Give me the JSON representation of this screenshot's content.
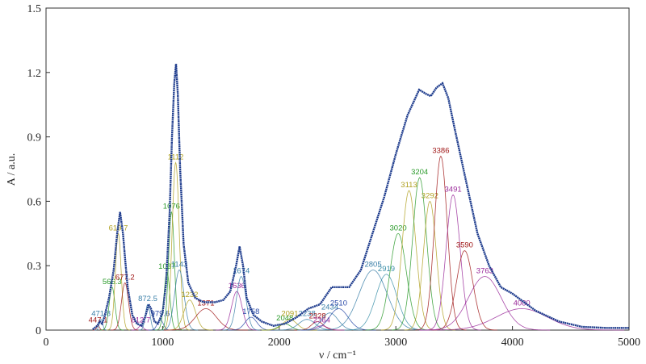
{
  "chart_data": {
    "type": "line",
    "x_label": "ν / cm⁻¹",
    "y_label": "A / a.u.",
    "xlim": [
      0,
      5000
    ],
    "ylim": [
      0,
      1.5
    ],
    "xticks": [
      0,
      1000,
      2000,
      3000,
      4000,
      5000
    ],
    "yticks": [
      0,
      0.3,
      0.6,
      0.9,
      1.2,
      1.5
    ],
    "color": "#1c3a8c",
    "x": [
      400,
      440,
      460,
      480,
      500,
      540,
      580,
      610,
      635,
      660,
      680,
      700,
      740,
      780,
      820,
      850,
      880,
      900,
      930,
      960,
      1000,
      1030,
      1060,
      1080,
      1100,
      1115,
      1130,
      1150,
      1180,
      1220,
      1280,
      1350,
      1450,
      1520,
      1580,
      1630,
      1660,
      1690,
      1720,
      1780,
      1850,
      1950,
      2050,
      2150,
      2250,
      2350,
      2450,
      2520,
      2600,
      2700,
      2800,
      2900,
      3000,
      3100,
      3200,
      3260,
      3300,
      3350,
      3400,
      3450,
      3500,
      3600,
      3700,
      3800,
      3900,
      4000,
      4100,
      4200,
      4400,
      4600,
      4800,
      5000
    ],
    "values": [
      0.003,
      0.02,
      0.04,
      0.03,
      0.06,
      0.15,
      0.28,
      0.45,
      0.55,
      0.45,
      0.32,
      0.2,
      0.07,
      0.03,
      0.02,
      0.06,
      0.12,
      0.1,
      0.04,
      0.03,
      0.08,
      0.22,
      0.55,
      0.9,
      1.15,
      1.24,
      1.1,
      0.75,
      0.4,
      0.22,
      0.15,
      0.13,
      0.13,
      0.14,
      0.18,
      0.3,
      0.39,
      0.3,
      0.15,
      0.07,
      0.04,
      0.02,
      0.03,
      0.06,
      0.1,
      0.12,
      0.2,
      0.2,
      0.2,
      0.28,
      0.45,
      0.62,
      0.82,
      1.0,
      1.12,
      1.1,
      1.09,
      1.13,
      1.15,
      1.08,
      0.95,
      0.7,
      0.45,
      0.3,
      0.2,
      0.17,
      0.13,
      0.09,
      0.04,
      0.015,
      0.01,
      0.01
    ],
    "peaks": [
      {
        "center": 447.1,
        "height": 0.02,
        "width": 12,
        "color": "#a01818"
      },
      {
        "center": 471.8,
        "height": 0.05,
        "width": 14,
        "color": "#3a7fa8"
      },
      {
        "center": 566.3,
        "height": 0.2,
        "width": 25,
        "color": "#2a9a2a"
      },
      {
        "center": 619.7,
        "height": 0.45,
        "width": 25,
        "color": "#b0a020"
      },
      {
        "center": 677.2,
        "height": 0.22,
        "width": 30,
        "color": "#a01818"
      },
      {
        "center": 812.7,
        "height": 0.02,
        "width": 20,
        "color": "#9a2a9a"
      },
      {
        "center": 872.5,
        "height": 0.12,
        "width": 20,
        "color": "#3a7fa8"
      },
      {
        "center": 979.6,
        "height": 0.05,
        "width": 25,
        "color": "#2a4aa8"
      },
      {
        "center": 1037,
        "height": 0.27,
        "width": 25,
        "color": "#2a9a2a"
      },
      {
        "center": 1076,
        "height": 0.55,
        "width": 25,
        "color": "#2a9a2a"
      },
      {
        "center": 1112,
        "height": 0.78,
        "width": 30,
        "color": "#b0a020"
      },
      {
        "center": 1143,
        "height": 0.28,
        "width": 40,
        "color": "#3a7fa8"
      },
      {
        "center": 1232,
        "height": 0.14,
        "width": 50,
        "color": "#b0a020"
      },
      {
        "center": 1371,
        "height": 0.1,
        "width": 90,
        "color": "#a01818"
      },
      {
        "center": 1636,
        "height": 0.18,
        "width": 45,
        "color": "#9a2a9a"
      },
      {
        "center": 1674,
        "height": 0.25,
        "width": 40,
        "color": "#3a7fa8"
      },
      {
        "center": 1758,
        "height": 0.06,
        "width": 50,
        "color": "#2a4aa8"
      },
      {
        "center": 2048,
        "height": 0.03,
        "width": 50,
        "color": "#2a9a2a"
      },
      {
        "center": 2091,
        "height": 0.05,
        "width": 60,
        "color": "#b0a020"
      },
      {
        "center": 2238,
        "height": 0.05,
        "width": 70,
        "color": "#3a7fa8"
      },
      {
        "center": 2328,
        "height": 0.04,
        "width": 50,
        "color": "#a01818"
      },
      {
        "center": 2364,
        "height": 0.02,
        "width": 50,
        "color": "#9a2a9a"
      },
      {
        "center": 2434,
        "height": 0.08,
        "width": 70,
        "color": "#3a7fa8"
      },
      {
        "center": 2510,
        "height": 0.1,
        "width": 80,
        "color": "#2a4aa8"
      },
      {
        "center": 2805,
        "height": 0.28,
        "width": 120,
        "color": "#3a7fa8"
      },
      {
        "center": 2919,
        "height": 0.26,
        "width": 90,
        "color": "#3a8fa8"
      },
      {
        "center": 3020,
        "height": 0.45,
        "width": 70,
        "color": "#2a9a2a"
      },
      {
        "center": 3113,
        "height": 0.65,
        "width": 60,
        "color": "#b0a020"
      },
      {
        "center": 3204,
        "height": 0.71,
        "width": 60,
        "color": "#2a9a2a"
      },
      {
        "center": 3292,
        "height": 0.6,
        "width": 55,
        "color": "#b0a020"
      },
      {
        "center": 3386,
        "height": 0.81,
        "width": 55,
        "color": "#a01818"
      },
      {
        "center": 3491,
        "height": 0.63,
        "width": 60,
        "color": "#9a2a9a"
      },
      {
        "center": 3590,
        "height": 0.37,
        "width": 70,
        "color": "#a01818"
      },
      {
        "center": 3763,
        "height": 0.25,
        "width": 140,
        "color": "#9a2a9a"
      },
      {
        "center": 4080,
        "height": 0.1,
        "width": 220,
        "color": "#9a2a9a"
      }
    ]
  }
}
